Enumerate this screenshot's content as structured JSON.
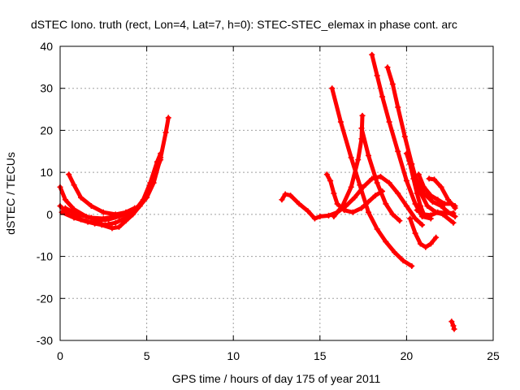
{
  "chart_data": {
    "type": "scatter",
    "title": "dSTEC Iono. truth (rect, Lon=4, Lat=7, h=0): STEC-STEC_elemax in phase cont. arc",
    "xlabel": "GPS time / hours of day 175 of year 2011",
    "ylabel": "dSTEC  / TECUs",
    "xlim": [
      0,
      25
    ],
    "ylim": [
      -30,
      40
    ],
    "xticks": [
      0,
      5,
      10,
      15,
      20,
      25
    ],
    "yticks": [
      -30,
      -20,
      -10,
      0,
      10,
      20,
      30,
      40
    ],
    "xtick_labels": [
      "0",
      "5",
      "10",
      "15",
      "20",
      "25"
    ],
    "ytick_labels": [
      "-30",
      "-20",
      "-10",
      "0",
      "10",
      "20",
      "30",
      "40"
    ],
    "grid": true,
    "marker": "plus",
    "color": "#ff0000",
    "series": [
      {
        "points": [
          [
            0.0,
            6.5
          ],
          [
            0.3,
            3.5
          ],
          [
            0.8,
            1.2
          ],
          [
            1.5,
            -0.5
          ],
          [
            2.2,
            -1.5
          ],
          [
            2.8,
            -1.2
          ],
          [
            3.4,
            -0.5
          ],
          [
            4.0,
            0.5
          ],
          [
            4.6,
            2.0
          ],
          [
            5.0,
            4.0
          ],
          [
            5.4,
            7.5
          ],
          [
            5.8,
            13.5
          ],
          [
            6.1,
            19.5
          ],
          [
            6.25,
            23.0
          ]
        ]
      },
      {
        "points": [
          [
            0.0,
            2.0
          ],
          [
            0.5,
            0.0
          ],
          [
            1.2,
            -1.2
          ],
          [
            2.0,
            -2.2
          ],
          [
            2.6,
            -2.5
          ],
          [
            3.2,
            -2.0
          ],
          [
            3.8,
            -0.8
          ],
          [
            4.3,
            0.8
          ],
          [
            4.8,
            3.5
          ],
          [
            5.2,
            7.5
          ],
          [
            5.6,
            12.5
          ],
          [
            5.8,
            14.5
          ]
        ]
      },
      {
        "points": [
          [
            0.1,
            0.5
          ],
          [
            0.8,
            -0.8
          ],
          [
            1.6,
            -1.8
          ],
          [
            2.4,
            -2.5
          ],
          [
            3.0,
            -3.3
          ],
          [
            3.4,
            -3.0
          ],
          [
            3.8,
            -1.5
          ],
          [
            4.2,
            0.0
          ],
          [
            4.6,
            2.0
          ],
          [
            5.0,
            5.0
          ],
          [
            5.4,
            9.0
          ],
          [
            5.8,
            13.0
          ]
        ]
      },
      {
        "points": [
          [
            0.5,
            9.5
          ],
          [
            0.8,
            7.0
          ],
          [
            1.2,
            4.0
          ],
          [
            1.8,
            2.0
          ],
          [
            2.5,
            0.5
          ],
          [
            3.2,
            0.0
          ],
          [
            3.8,
            0.5
          ],
          [
            4.3,
            1.5
          ]
        ]
      },
      {
        "points": [
          [
            0.3,
            1.5
          ],
          [
            1.0,
            0.0
          ],
          [
            1.8,
            -0.8
          ],
          [
            2.5,
            -1.0
          ],
          [
            3.2,
            -0.5
          ],
          [
            3.8,
            0.3
          ],
          [
            4.4,
            1.5
          ]
        ]
      },
      {
        "points": [
          [
            12.8,
            3.5
          ],
          [
            13.0,
            4.8
          ],
          [
            13.3,
            4.5
          ],
          [
            13.8,
            2.5
          ],
          [
            14.3,
            0.8
          ],
          [
            14.7,
            -1.0
          ],
          [
            15.0,
            -0.5
          ],
          [
            15.5,
            -0.3
          ],
          [
            16.0,
            0.5
          ],
          [
            16.5,
            2.0
          ],
          [
            17.0,
            4.0
          ],
          [
            17.5,
            6.5
          ],
          [
            18.0,
            8.5
          ],
          [
            18.5,
            9.0
          ],
          [
            19.0,
            7.5
          ],
          [
            19.5,
            5.0
          ],
          [
            20.0,
            2.0
          ],
          [
            20.5,
            -1.0
          ],
          [
            20.9,
            -2.5
          ]
        ]
      },
      {
        "points": [
          [
            15.4,
            9.5
          ],
          [
            15.6,
            8.0
          ],
          [
            15.8,
            5.0
          ],
          [
            16.0,
            2.5
          ],
          [
            16.4,
            1.0
          ],
          [
            16.9,
            0.5
          ],
          [
            17.4,
            1.5
          ],
          [
            17.8,
            3.0
          ],
          [
            18.2,
            4.5
          ],
          [
            18.6,
            5.5
          ]
        ]
      },
      {
        "points": [
          [
            15.7,
            30.0
          ],
          [
            16.2,
            22.0
          ],
          [
            16.8,
            13.5
          ],
          [
            17.3,
            7.0
          ],
          [
            17.8,
            0.5
          ],
          [
            18.3,
            -3.5
          ],
          [
            18.8,
            -6.5
          ],
          [
            19.3,
            -9.0
          ],
          [
            19.8,
            -11.0
          ],
          [
            20.3,
            -12.3
          ]
        ]
      },
      {
        "points": [
          [
            15.8,
            -0.5
          ],
          [
            16.3,
            2.0
          ],
          [
            16.8,
            6.5
          ],
          [
            17.2,
            13.0
          ],
          [
            17.4,
            18.0
          ],
          [
            17.45,
            23.5
          ]
        ]
      },
      {
        "points": [
          [
            17.4,
            20.5
          ],
          [
            17.8,
            14.0
          ],
          [
            18.3,
            7.5
          ],
          [
            18.8,
            2.5
          ],
          [
            19.2,
            0.0
          ],
          [
            19.6,
            -1.5
          ]
        ]
      },
      {
        "points": [
          [
            18.0,
            38.0
          ],
          [
            18.3,
            33.0
          ],
          [
            18.6,
            28.0
          ],
          [
            19.0,
            22.0
          ],
          [
            19.5,
            15.0
          ],
          [
            20.0,
            8.0
          ],
          [
            20.5,
            2.5
          ],
          [
            20.9,
            -0.5
          ],
          [
            21.4,
            -1.0
          ]
        ]
      },
      {
        "points": [
          [
            18.9,
            35.0
          ],
          [
            19.2,
            31.0
          ],
          [
            19.5,
            25.5
          ],
          [
            19.9,
            18.5
          ],
          [
            20.3,
            12.0
          ],
          [
            20.7,
            6.0
          ],
          [
            21.2,
            2.0
          ],
          [
            21.7,
            0.5
          ],
          [
            22.1,
            0.0
          ],
          [
            22.7,
            -2.0
          ]
        ]
      },
      {
        "points": [
          [
            20.0,
            14.5
          ],
          [
            20.2,
            12.0
          ],
          [
            20.4,
            8.5
          ],
          [
            20.6,
            5.0
          ],
          [
            20.8,
            2.0
          ],
          [
            21.0,
            0.0
          ],
          [
            21.2,
            -0.5
          ]
        ]
      },
      {
        "points": [
          [
            20.3,
            11.0
          ],
          [
            20.6,
            8.0
          ],
          [
            21.0,
            5.0
          ],
          [
            21.5,
            3.0
          ],
          [
            22.0,
            2.0
          ],
          [
            22.4,
            0.5
          ],
          [
            22.8,
            -0.5
          ]
        ]
      },
      {
        "points": [
          [
            20.2,
            -1.0
          ],
          [
            20.5,
            -4.5
          ],
          [
            20.8,
            -7.0
          ],
          [
            21.1,
            -7.8
          ],
          [
            21.4,
            -7.0
          ],
          [
            21.7,
            -5.5
          ]
        ]
      },
      {
        "points": [
          [
            21.3,
            8.5
          ],
          [
            21.6,
            8.3
          ],
          [
            22.0,
            6.5
          ],
          [
            22.4,
            3.5
          ],
          [
            22.8,
            1.5
          ]
        ]
      },
      {
        "points": [
          [
            20.6,
            1.0
          ],
          [
            21.0,
            0.0
          ],
          [
            21.4,
            -0.2
          ],
          [
            21.8,
            0.5
          ],
          [
            22.3,
            0.3
          ],
          [
            22.7,
            0.3
          ]
        ]
      },
      {
        "points": [
          [
            20.7,
            9.5
          ],
          [
            21.0,
            6.5
          ],
          [
            21.4,
            4.5
          ],
          [
            21.8,
            3.5
          ],
          [
            22.2,
            2.5
          ],
          [
            22.6,
            2.5
          ],
          [
            22.8,
            2.0
          ]
        ]
      },
      {
        "points": [
          [
            22.6,
            -25.5
          ],
          [
            22.7,
            -26.5
          ],
          [
            22.75,
            -27.3
          ]
        ]
      }
    ]
  }
}
